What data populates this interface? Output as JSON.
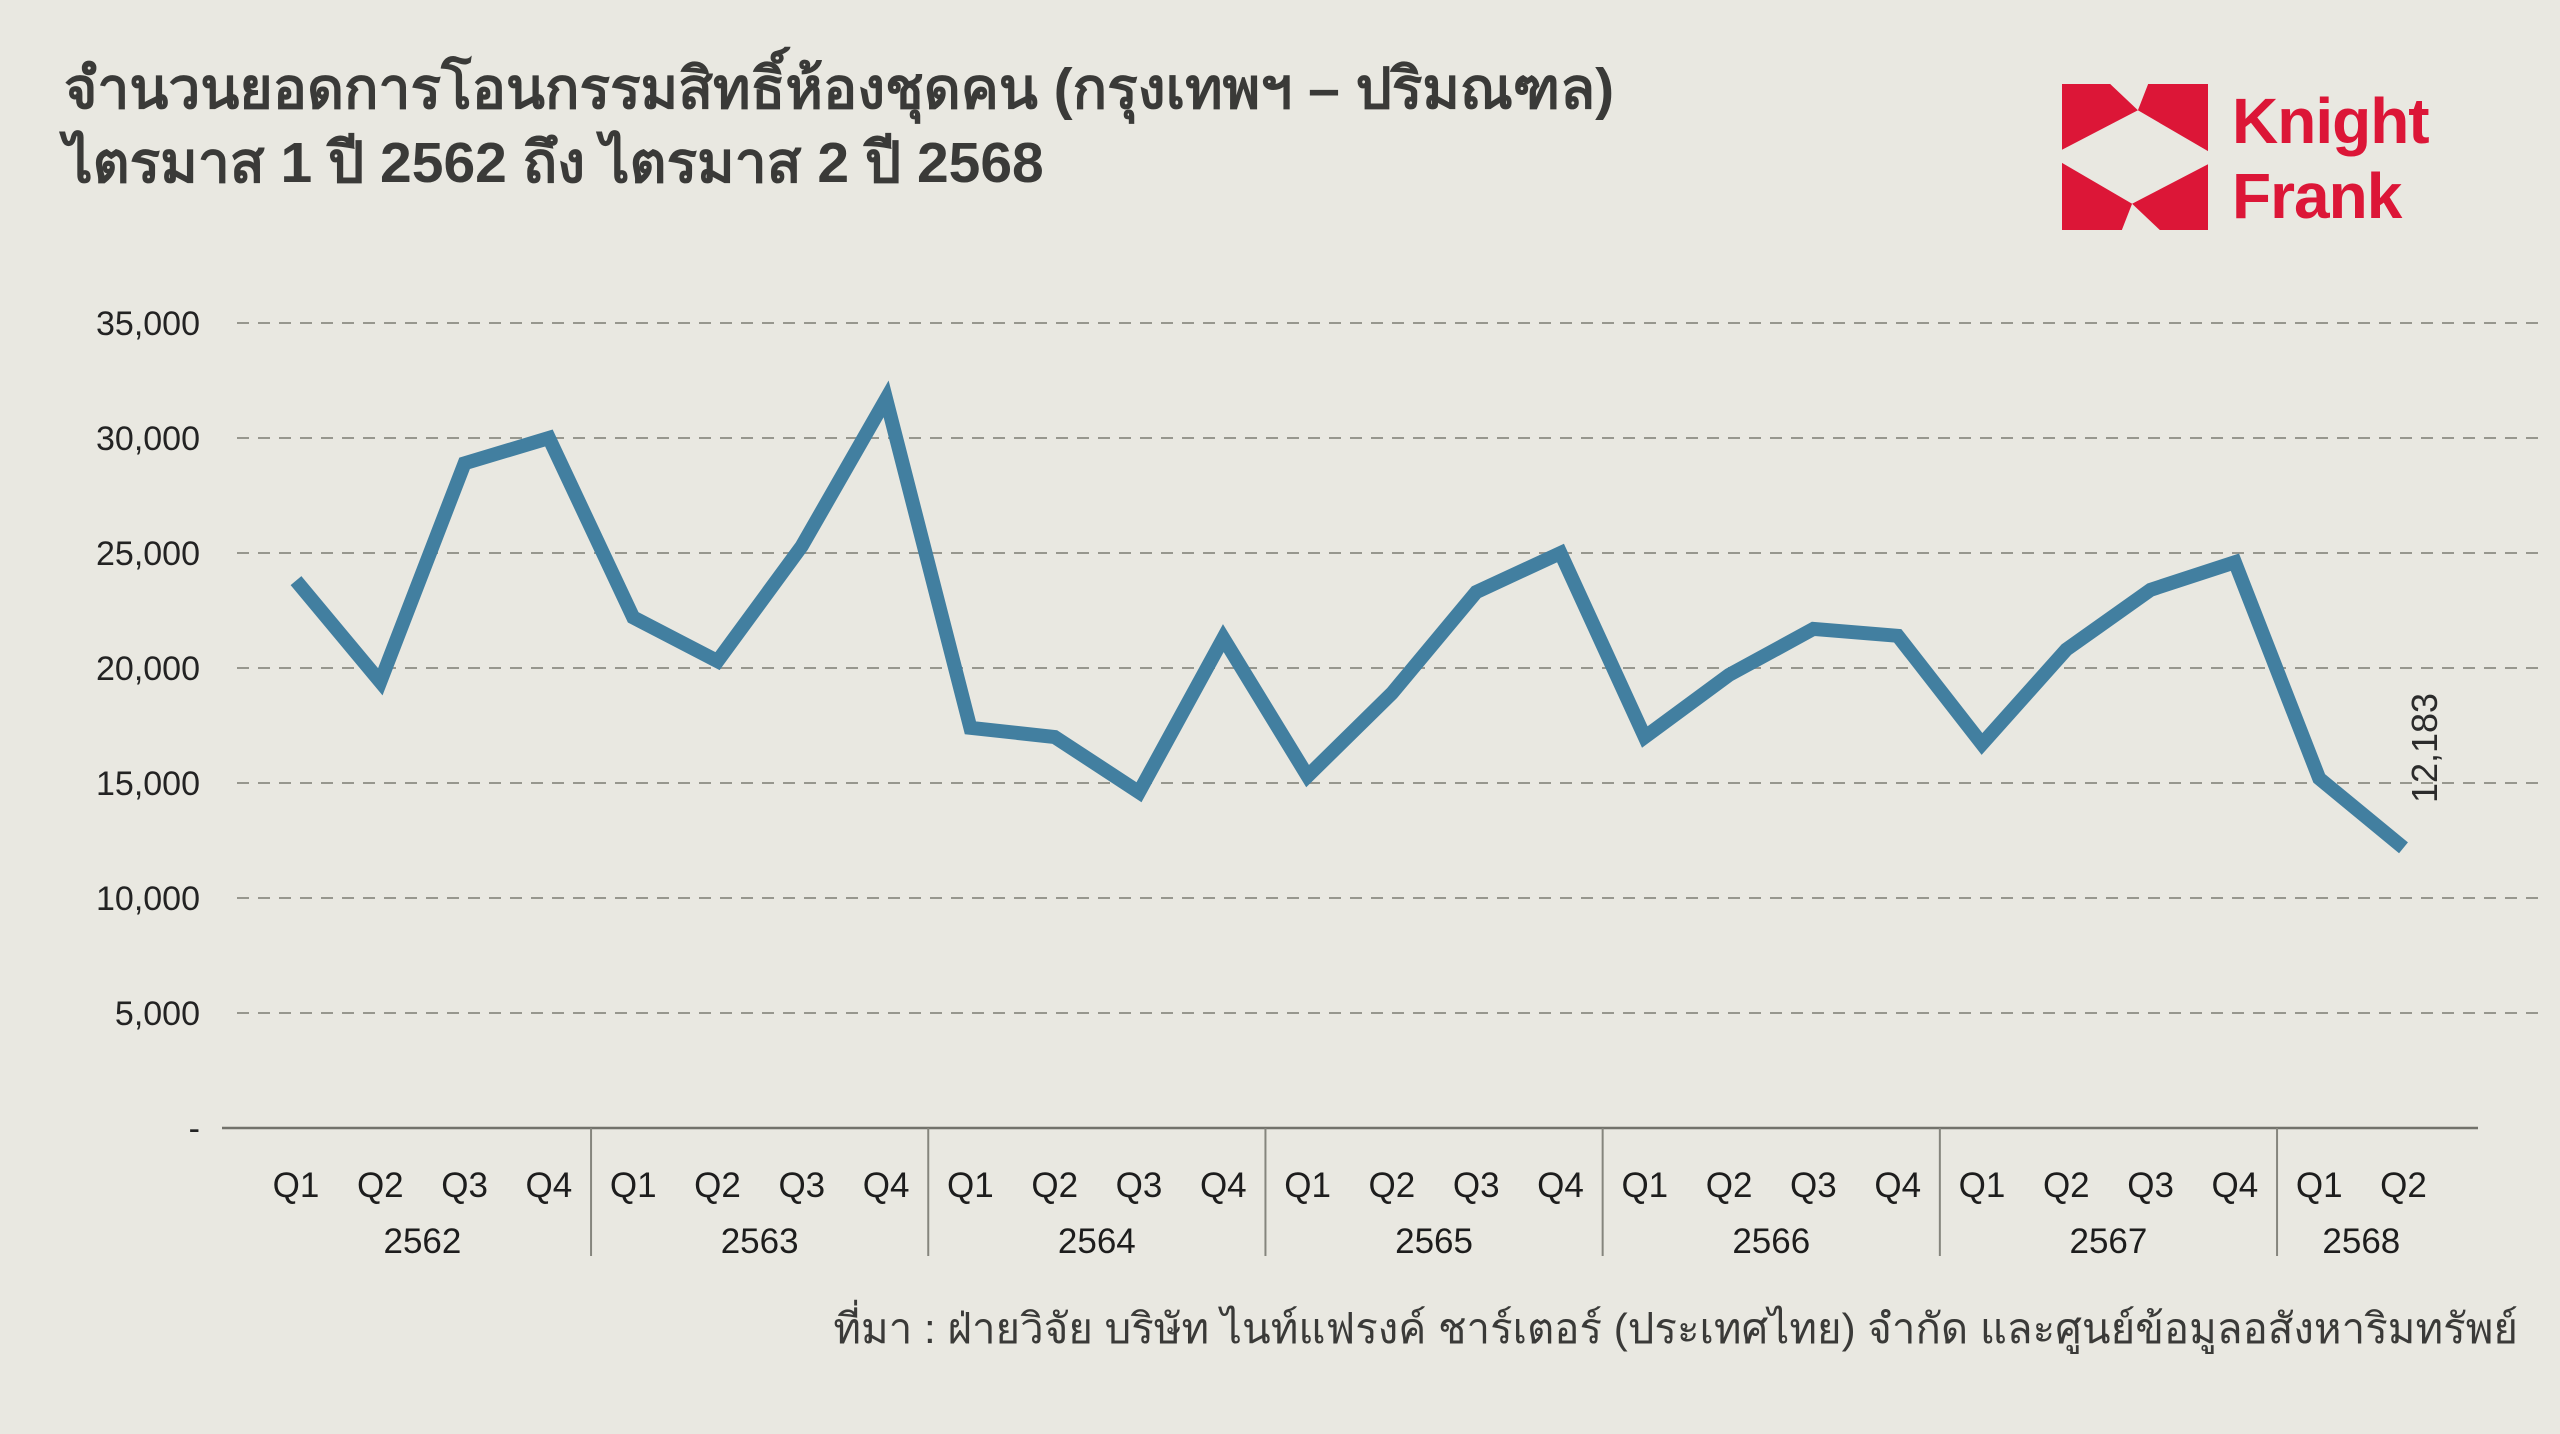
{
  "title": {
    "line1": "จำนวนยอดการโอนกรรมสิทธิ์ห้องชุดคน (กรุงเทพฯ – ปริมณฑล)",
    "line2": "ไตรมาส 1 ปี 2562 ถึง ไตรมาส 2 ปี 2568"
  },
  "logo": {
    "line1": "Knight",
    "line2": "Frank"
  },
  "source": "ที่มา : ฝ่ายวิจัย บริษัท ไนท์แฟรงค์ ชาร์เตอร์ (ประเทศไทย) จำกัด และศูนย์ข้อมูลอสังหาริมทรัพย์",
  "colors": {
    "background": "#e9e8e1",
    "line": "#427fa0",
    "brand_red": "#dc1637",
    "text": "#3a3a38"
  },
  "chart_data": {
    "type": "line",
    "title": "จำนวนยอดการโอนกรรมสิทธิ์ห้องชุดคน (กรุงเทพฯ – ปริมณฑล) ไตรมาส 1 ปี 2562 ถึง ไตรมาส 2 ปี 2568",
    "xlabel": "",
    "ylabel": "",
    "ylim": [
      0,
      35000
    ],
    "ytick_step": 5000,
    "grid": "dashed-horizontal",
    "legend": null,
    "y_ticks": [
      {
        "value": 0,
        "label": "-"
      },
      {
        "value": 5000,
        "label": "5,000"
      },
      {
        "value": 10000,
        "label": "10,000"
      },
      {
        "value": 15000,
        "label": "15,000"
      },
      {
        "value": 20000,
        "label": "20,000"
      },
      {
        "value": 25000,
        "label": "25,000"
      },
      {
        "value": 30000,
        "label": "30,000"
      },
      {
        "value": 35000,
        "label": "35,000"
      }
    ],
    "years": [
      {
        "label": "2562",
        "quarters": [
          "Q1",
          "Q2",
          "Q3",
          "Q4"
        ],
        "values": [
          23800,
          19400,
          28900,
          30000
        ]
      },
      {
        "label": "2563",
        "quarters": [
          "Q1",
          "Q2",
          "Q3",
          "Q4"
        ],
        "values": [
          22200,
          20300,
          25300,
          31700
        ]
      },
      {
        "label": "2564",
        "quarters": [
          "Q1",
          "Q2",
          "Q3",
          "Q4"
        ],
        "values": [
          17400,
          17000,
          14600,
          21300
        ]
      },
      {
        "label": "2565",
        "quarters": [
          "Q1",
          "Q2",
          "Q3",
          "Q4"
        ],
        "values": [
          15300,
          18900,
          23300,
          25000
        ]
      },
      {
        "label": "2566",
        "quarters": [
          "Q1",
          "Q2",
          "Q3",
          "Q4"
        ],
        "values": [
          17000,
          19700,
          21700,
          21400
        ]
      },
      {
        "label": "2567",
        "quarters": [
          "Q1",
          "Q2",
          "Q3",
          "Q4"
        ],
        "values": [
          16700,
          20800,
          23400,
          24600
        ]
      },
      {
        "label": "2568",
        "quarters": [
          "Q1",
          "Q2"
        ],
        "values": [
          15200,
          12183
        ]
      }
    ],
    "end_label": "12,183"
  }
}
